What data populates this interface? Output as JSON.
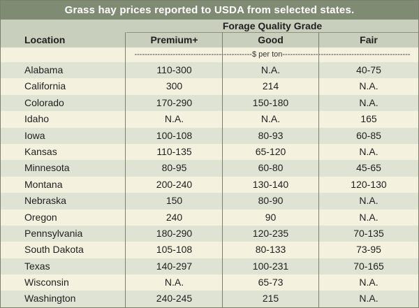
{
  "title": "Grass hay prices reported to USDA from selected states.",
  "header": {
    "grade_group": "Forage Quality Grade",
    "columns": {
      "location": "Location",
      "premium": "Premium+",
      "good": "Good",
      "fair": "Fair"
    },
    "units": "----------------------------------------------$ per ton--------------------------------------------------"
  },
  "rows": [
    {
      "location": "Alabama",
      "premium": "110-300",
      "good": "N.A.",
      "fair": "40-75"
    },
    {
      "location": "California",
      "premium": "300",
      "good": "214",
      "fair": "N.A."
    },
    {
      "location": "Colorado",
      "premium": "170-290",
      "good": "150-180",
      "fair": "N.A."
    },
    {
      "location": "Idaho",
      "premium": "N.A.",
      "good": "N.A.",
      "fair": "165"
    },
    {
      "location": "Iowa",
      "premium": "100-108",
      "good": "80-93",
      "fair": "60-85"
    },
    {
      "location": "Kansas",
      "premium": "110-135",
      "good": "65-120",
      "fair": "N.A."
    },
    {
      "location": "Minnesota",
      "premium": "80-95",
      "good": "60-80",
      "fair": "45-65"
    },
    {
      "location": "Montana",
      "premium": "200-240",
      "good": "130-140",
      "fair": "120-130"
    },
    {
      "location": "Nebraska",
      "premium": "150",
      "good": "80-90",
      "fair": "N.A."
    },
    {
      "location": "Oregon",
      "premium": "240",
      "good": "90",
      "fair": "N.A."
    },
    {
      "location": "Pennsylvania",
      "premium": "180-290",
      "good": "120-235",
      "fair": "70-135"
    },
    {
      "location": "South Dakota",
      "premium": "105-108",
      "good": "80-133",
      "fair": "73-95"
    },
    {
      "location": "Texas",
      "premium": "140-297",
      "good": "100-231",
      "fair": "70-165"
    },
    {
      "location": "Wisconsin",
      "premium": "N.A.",
      "good": "65-73",
      "fair": "N.A."
    },
    {
      "location": "Washington",
      "premium": "240-245",
      "good": "215",
      "fair": "N.A."
    }
  ],
  "colors": {
    "title_bar": "#7f8b73",
    "header_bg": "#c9cfbd",
    "row_alt": "#dfe3d4",
    "row_base": "#f4f1df"
  }
}
